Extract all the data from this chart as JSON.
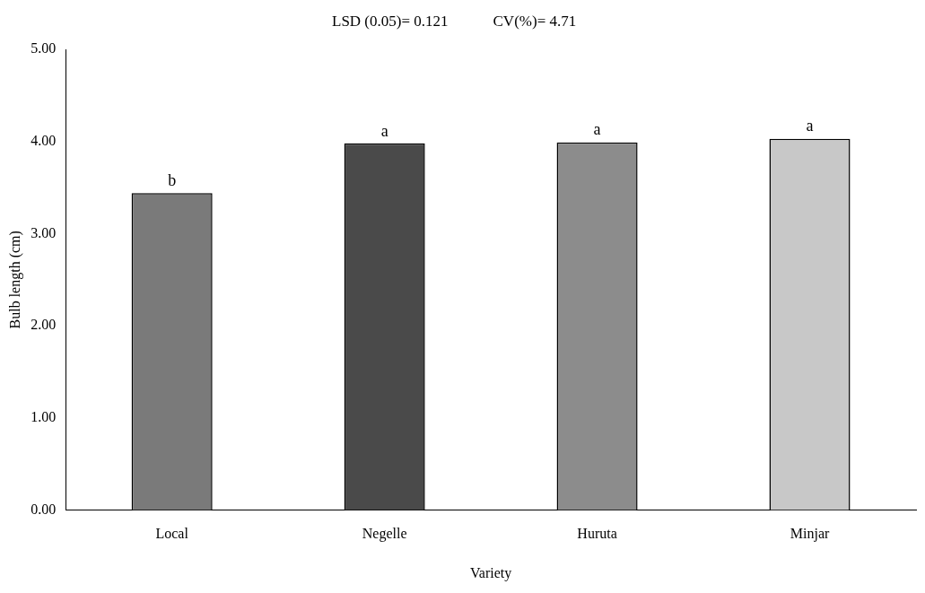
{
  "chart_data": {
    "type": "bar",
    "xlabel": "Variety",
    "ylabel": "Bulb length (cm)",
    "categories": [
      "Local",
      "Negelle",
      "Huruta",
      "Minjar"
    ],
    "values": [
      3.44,
      3.98,
      3.99,
      4.03
    ],
    "colors": [
      "#7a7a7a",
      "#4a4a4a",
      "#8c8c8c",
      "#c8c8c8"
    ],
    "value_labels": [
      "b",
      "a",
      "a",
      "a"
    ],
    "annotations": [
      "LSD (0.05)= 0.121",
      "CV(%)= 4.71"
    ],
    "ylim": [
      0,
      5
    ],
    "yticks": [
      {
        "value": 0,
        "label": "0.00"
      },
      {
        "value": 1,
        "label": "1.00"
      },
      {
        "value": 2,
        "label": "2.00"
      },
      {
        "value": 3,
        "label": "3.00"
      },
      {
        "value": 4,
        "label": "4.00"
      },
      {
        "value": 5,
        "label": "5.00"
      }
    ],
    "grid": false,
    "legend": false
  }
}
